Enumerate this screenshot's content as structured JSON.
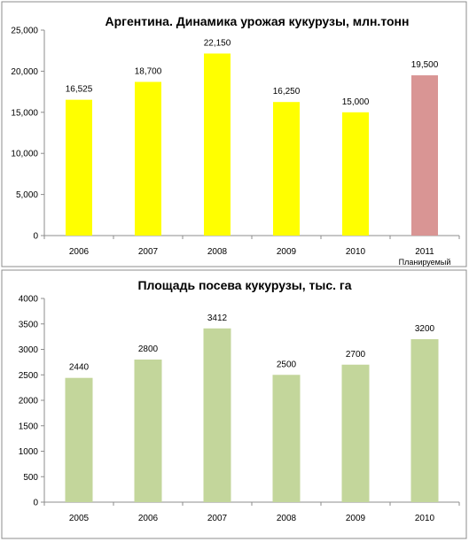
{
  "chart_data": [
    {
      "type": "bar",
      "title": "Аргентина. Динамика урожая кукурузы, млн.тонн",
      "categories": [
        "2006",
        "2007",
        "2008",
        "2009",
        "2010",
        "2011"
      ],
      "category_sublabels": [
        "",
        "",
        "",
        "",
        "",
        "Планируемый"
      ],
      "values": [
        16525,
        18700,
        22150,
        16250,
        15000,
        19500
      ],
      "value_labels": [
        "16,525",
        "18,700",
        "22,150",
        "16,250",
        "15,000",
        "19,500"
      ],
      "bar_colors": [
        "#ffff00",
        "#ffff00",
        "#ffff00",
        "#ffff00",
        "#ffff00",
        "#d99594"
      ],
      "ylim": [
        0,
        25000
      ],
      "yticks": [
        0,
        5000,
        10000,
        15000,
        20000,
        25000
      ],
      "ytick_labels": [
        "0",
        "5,000",
        "10,000",
        "15,000",
        "20,000",
        "25,000"
      ],
      "xlabel": "",
      "ylabel": "",
      "grid": false,
      "legend": "none"
    },
    {
      "type": "bar",
      "title": "Площадь посева кукурузы, тыс. га",
      "categories": [
        "2005",
        "2006",
        "2007",
        "2008",
        "2009",
        "2010"
      ],
      "category_sublabels": [
        "",
        "",
        "",
        "",
        "",
        ""
      ],
      "values": [
        2440,
        2800,
        3412,
        2500,
        2700,
        3200
      ],
      "value_labels": [
        "2440",
        "2800",
        "3412",
        "2500",
        "2700",
        "3200"
      ],
      "bar_colors": [
        "#c3d69b",
        "#c3d69b",
        "#c3d69b",
        "#c3d69b",
        "#c3d69b",
        "#c3d69b"
      ],
      "ylim": [
        0,
        4000
      ],
      "yticks": [
        0,
        500,
        1000,
        1500,
        2000,
        2500,
        3000,
        3500,
        4000
      ],
      "ytick_labels": [
        "0",
        "500",
        "1000",
        "1500",
        "2000",
        "2500",
        "3000",
        "3500",
        "4000"
      ],
      "xlabel": "",
      "ylabel": "",
      "grid": false,
      "legend": "none"
    }
  ]
}
